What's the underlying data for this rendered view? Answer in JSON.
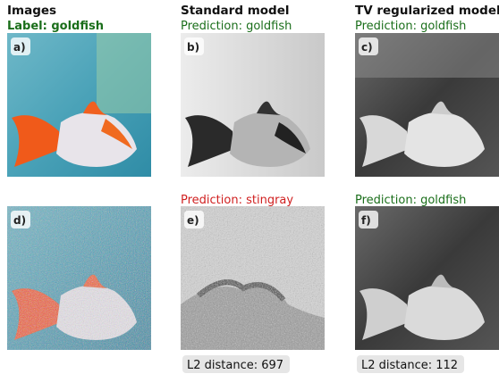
{
  "columns": [
    {
      "title": "Images"
    },
    {
      "title": "Standard model"
    },
    {
      "title": "TV regularized model"
    }
  ],
  "label": "Label: goldfish",
  "panels": [
    {
      "letter": "a)"
    },
    {
      "letter": "b)",
      "prediction": "Prediction: goldfish"
    },
    {
      "letter": "c)",
      "prediction": "Prediction: goldfish"
    },
    {
      "letter": "d)"
    },
    {
      "letter": "e)",
      "prediction": "Prediction: stingray",
      "l2": "L2 distance: 697"
    },
    {
      "letter": "f)",
      "prediction": "Prediction: goldfish",
      "l2": "L2 distance: 112"
    }
  ]
}
